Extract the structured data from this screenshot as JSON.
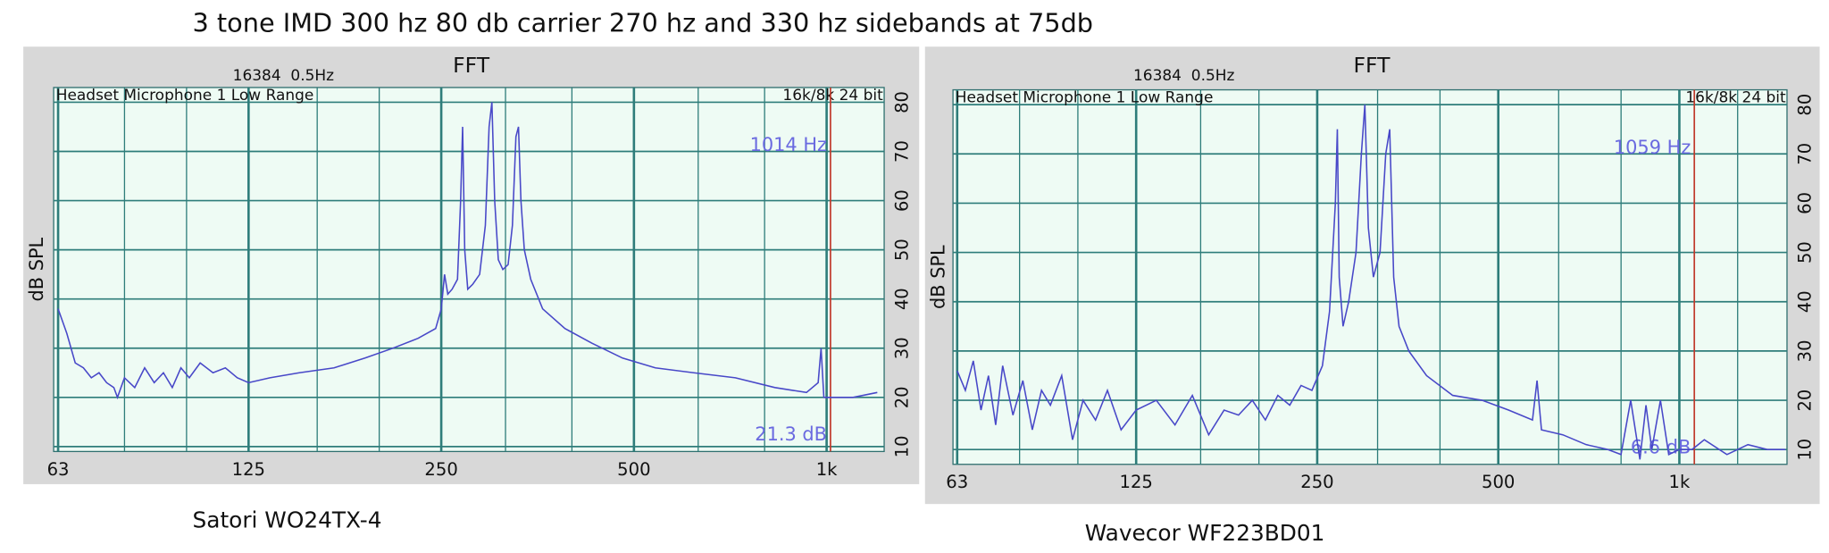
{
  "title": "3 tone IMD 300 hz 80 db carrier 270 hz and 330 hz sidebands at 75db",
  "chart_data": [
    {
      "type": "line",
      "title": "FFT",
      "info": "16384  0.5Hz",
      "plot_label": "Headset Microphone 1 Low Range",
      "format": "16k/8k 24 bit",
      "ylabel": "dB SPL",
      "caption": "Satori WO24TX-4",
      "log_x": true,
      "grid": true,
      "xlim": [
        62,
        1230
      ],
      "ylim": [
        9,
        83
      ],
      "xticks": [
        63,
        125,
        250,
        500,
        {
          "value": 1000,
          "label": "1k"
        }
      ],
      "xminorticks": [
        80,
        100,
        160,
        200,
        315,
        400,
        630,
        800
      ],
      "yticks": [
        10,
        20,
        30,
        40,
        50,
        60,
        70,
        80
      ],
      "cursor_freq": 1014,
      "cursor_freq_label": "1014 Hz",
      "cursor_level": 21.3,
      "cursor_level_label": "21.3 dB",
      "cursor_color": "#c0392b",
      "series": [
        {
          "color": "#4848c8",
          "x": [
            63,
            65,
            67,
            69,
            71,
            73,
            75,
            77,
            78,
            80,
            83,
            86,
            89,
            92,
            95,
            98,
            101,
            105,
            110,
            115,
            120,
            125,
            135,
            150,
            170,
            190,
            210,
            230,
            245,
            250,
            253,
            256,
            260,
            265,
            268,
            270,
            272,
            275,
            280,
            287,
            293,
            297,
            300,
            303,
            307,
            312,
            318,
            323,
            327,
            330,
            333,
            337,
            345,
            360,
            390,
            430,
            480,
            540,
            620,
            720,
            830,
            930,
            970,
            980,
            990,
            1020,
            1100,
            1200
          ],
          "values": [
            38,
            33,
            27,
            26,
            24,
            25,
            23,
            22,
            20,
            24,
            22,
            26,
            23,
            25,
            22,
            26,
            24,
            27,
            25,
            26,
            24,
            23,
            24,
            25,
            26,
            28,
            30,
            32,
            34,
            38,
            45,
            41,
            42,
            44,
            60,
            75,
            50,
            42,
            43,
            45,
            55,
            75,
            80,
            60,
            48,
            46,
            47,
            55,
            73,
            75,
            60,
            50,
            44,
            38,
            34,
            31,
            28,
            26,
            25,
            24,
            22,
            21,
            23,
            30,
            20,
            20,
            20,
            21
          ]
        }
      ]
    },
    {
      "type": "line",
      "title": "FFT",
      "info": "16384  0.5Hz",
      "plot_label": "Headset Microphone 1 Low Range",
      "format": "16k/8k 24 bit",
      "ylabel": "dB SPL",
      "caption": "Wavecor WF223BD01",
      "log_x": true,
      "grid": true,
      "xlim": [
        62,
        1510
      ],
      "ylim": [
        7,
        83
      ],
      "xticks": [
        63,
        125,
        250,
        500,
        {
          "value": 1000,
          "label": "1k"
        }
      ],
      "xminorticks": [
        80,
        100,
        160,
        200,
        315,
        400,
        630,
        800,
        1250
      ],
      "yticks": [
        10,
        20,
        30,
        40,
        50,
        60,
        70,
        80
      ],
      "cursor_freq": 1059,
      "cursor_freq_label": "1059 Hz",
      "cursor_level": 6.6,
      "cursor_level_label": "6.6 dB",
      "cursor_color": "#c0392b",
      "series": [
        {
          "color": "#4848c8",
          "x": [
            63,
            65,
            67,
            69,
            71,
            73,
            75,
            78,
            81,
            84,
            87,
            90,
            94,
            98,
            102,
            107,
            112,
            118,
            125,
            135,
            145,
            155,
            165,
            175,
            185,
            195,
            205,
            215,
            225,
            235,
            245,
            255,
            262,
            268,
            270,
            272,
            276,
            282,
            290,
            296,
            300,
            304,
            310,
            318,
            325,
            330,
            335,
            342,
            355,
            380,
            420,
            470,
            520,
            570,
            580,
            590,
            640,
            700,
            760,
            800,
            830,
            860,
            880,
            900,
            930,
            960,
            1000,
            1050,
            1100,
            1200,
            1300,
            1400,
            1500
          ],
          "values": [
            26,
            22,
            28,
            18,
            25,
            15,
            27,
            17,
            24,
            14,
            22,
            19,
            25,
            12,
            20,
            16,
            22,
            14,
            18,
            20,
            15,
            21,
            13,
            18,
            17,
            20,
            16,
            21,
            19,
            23,
            22,
            27,
            38,
            60,
            75,
            45,
            35,
            40,
            50,
            70,
            80,
            55,
            45,
            50,
            70,
            75,
            45,
            35,
            30,
            25,
            21,
            20,
            18,
            16,
            24,
            14,
            13,
            11,
            10,
            9,
            20,
            8,
            19,
            10,
            20,
            9,
            10,
            10,
            12,
            9,
            11,
            10,
            10
          ]
        }
      ]
    }
  ]
}
